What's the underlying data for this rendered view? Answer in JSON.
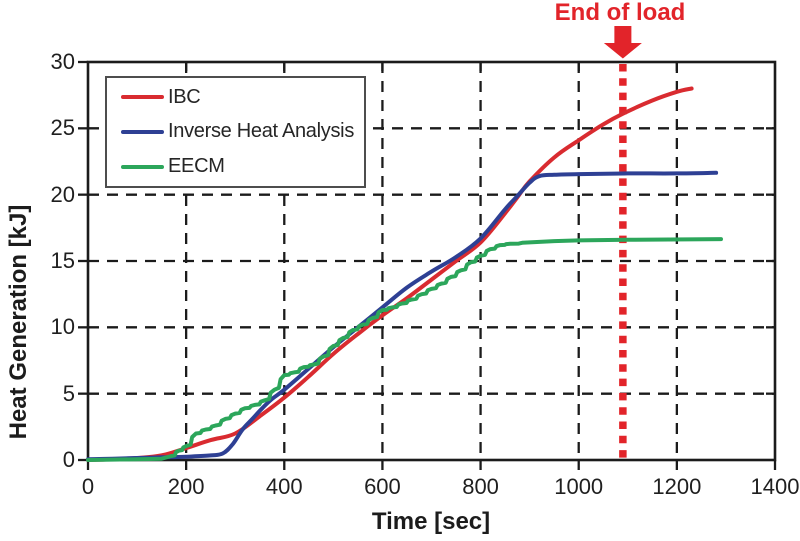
{
  "chart_data": {
    "type": "line",
    "title": "",
    "xlabel": "Time [sec]",
    "ylabel": "Heat Generation [kJ]",
    "xlim": [
      0,
      1400
    ],
    "ylim": [
      0,
      30
    ],
    "xticks": [
      0,
      200,
      400,
      600,
      800,
      1000,
      1200,
      1400
    ],
    "yticks": [
      0,
      5,
      10,
      15,
      20,
      25,
      30
    ],
    "grid": "dashed-black-major",
    "legend_position": "top-left",
    "axis_color": "#1b1b1b",
    "annotations": [
      {
        "type": "vline",
        "label": "End of load",
        "x": 1090,
        "color": "#e2242a",
        "style": "dotted-thick",
        "arrow": "down"
      }
    ],
    "series": [
      {
        "name": "IBC",
        "color": "#d92b30",
        "style": "smooth",
        "points": [
          [
            0,
            0
          ],
          [
            50,
            0.05
          ],
          [
            100,
            0.15
          ],
          [
            150,
            0.35
          ],
          [
            200,
            0.9
          ],
          [
            250,
            1.5
          ],
          [
            300,
            2.0
          ],
          [
            350,
            3.3
          ],
          [
            400,
            4.7
          ],
          [
            450,
            6.3
          ],
          [
            500,
            8.0
          ],
          [
            550,
            9.5
          ],
          [
            600,
            10.9
          ],
          [
            650,
            12.2
          ],
          [
            700,
            13.6
          ],
          [
            750,
            15.0
          ],
          [
            800,
            16.4
          ],
          [
            850,
            18.6
          ],
          [
            875,
            19.8
          ],
          [
            900,
            21.0
          ],
          [
            950,
            22.8
          ],
          [
            1000,
            24.1
          ],
          [
            1050,
            25.3
          ],
          [
            1090,
            26.1
          ],
          [
            1150,
            27.1
          ],
          [
            1200,
            27.75
          ],
          [
            1230,
            28.0
          ]
        ]
      },
      {
        "name": "Inverse Heat Analysis",
        "color": "#2e4094",
        "style": "smooth",
        "points": [
          [
            0,
            0.05
          ],
          [
            50,
            0.1
          ],
          [
            100,
            0.15
          ],
          [
            150,
            0.2
          ],
          [
            200,
            0.25
          ],
          [
            250,
            0.35
          ],
          [
            275,
            0.5
          ],
          [
            295,
            1.2
          ],
          [
            315,
            2.3
          ],
          [
            335,
            3.1
          ],
          [
            355,
            3.9
          ],
          [
            375,
            4.6
          ],
          [
            400,
            5.3
          ],
          [
            450,
            6.9
          ],
          [
            500,
            8.5
          ],
          [
            550,
            10.0
          ],
          [
            600,
            11.5
          ],
          [
            650,
            13.0
          ],
          [
            700,
            14.2
          ],
          [
            750,
            15.3
          ],
          [
            800,
            16.7
          ],
          [
            850,
            18.9
          ],
          [
            875,
            19.9
          ],
          [
            900,
            20.9
          ],
          [
            920,
            21.4
          ],
          [
            950,
            21.5
          ],
          [
            1000,
            21.55
          ],
          [
            1100,
            21.6
          ],
          [
            1200,
            21.6
          ],
          [
            1280,
            21.65
          ]
        ]
      },
      {
        "name": "EECM",
        "color": "#2ca65b",
        "style": "stepped",
        "points": [
          [
            0,
            0
          ],
          [
            100,
            0.05
          ],
          [
            150,
            0.1
          ],
          [
            170,
            0.3
          ],
          [
            185,
            0.7
          ],
          [
            200,
            1.05
          ],
          [
            220,
            2.0
          ],
          [
            240,
            2.3
          ],
          [
            260,
            2.6
          ],
          [
            280,
            3.1
          ],
          [
            300,
            3.5
          ],
          [
            320,
            3.9
          ],
          [
            340,
            4.15
          ],
          [
            360,
            4.5
          ],
          [
            380,
            5.3
          ],
          [
            400,
            6.4
          ],
          [
            420,
            6.6
          ],
          [
            440,
            7.0
          ],
          [
            460,
            7.2
          ],
          [
            480,
            7.8
          ],
          [
            500,
            8.6
          ],
          [
            520,
            9.2
          ],
          [
            540,
            9.8
          ],
          [
            560,
            10.2
          ],
          [
            580,
            10.7
          ],
          [
            600,
            11.3
          ],
          [
            620,
            11.5
          ],
          [
            640,
            11.8
          ],
          [
            660,
            12.1
          ],
          [
            680,
            12.5
          ],
          [
            700,
            12.9
          ],
          [
            720,
            13.3
          ],
          [
            740,
            13.8
          ],
          [
            760,
            14.3
          ],
          [
            780,
            14.9
          ],
          [
            800,
            15.4
          ],
          [
            820,
            15.9
          ],
          [
            840,
            16.2
          ],
          [
            860,
            16.3
          ],
          [
            900,
            16.4
          ],
          [
            950,
            16.5
          ],
          [
            1000,
            16.55
          ],
          [
            1100,
            16.6
          ],
          [
            1290,
            16.65
          ]
        ]
      }
    ]
  }
}
